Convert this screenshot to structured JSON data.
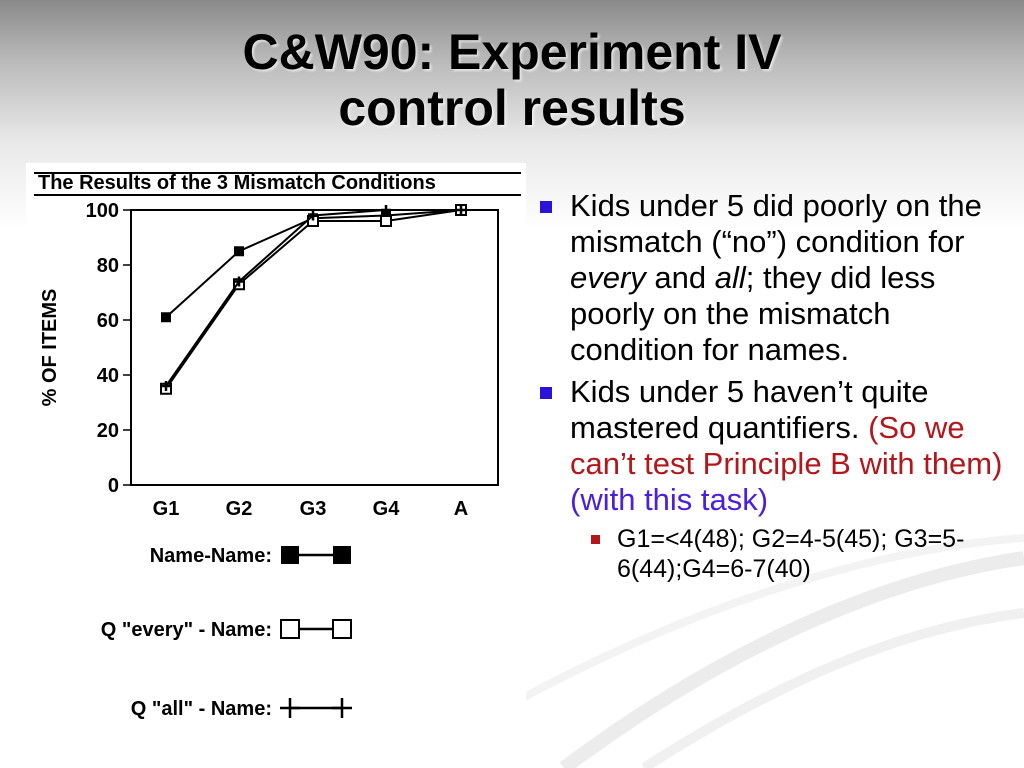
{
  "slide": {
    "title_line1": "C&W90: Experiment IV",
    "title_line2": "control results",
    "bullets": [
      {
        "part1": "Kids under 5 did poorly on the mismatch (“no”) condition for ",
        "em1": "every",
        "part2": " and ",
        "em2": "all",
        "part3": "; they did less poorly on the mismatch condition for names."
      },
      {
        "part1": "Kids under 5 haven’t quite mastered quantifiers. ",
        "red": "(So we can’t test Principle B with them)",
        "space": " ",
        "blue": "(with this task)"
      }
    ],
    "sub_bullet": "G1=<4(48); G2=4-5(45); G3=5-6(44);G4=6-7(40)",
    "colors": {
      "bullet": "#2a12d9",
      "red_text": "#b3161b",
      "blue_text": "#4b1ee0"
    }
  },
  "chart_data": {
    "type": "line",
    "title": "The Results of the 3 Mismatch Conditions",
    "ylabel": "% OF ITEMS",
    "xlabel": "",
    "categories": [
      "G1",
      "G2",
      "G3",
      "G4",
      "A"
    ],
    "ylim": [
      0,
      100
    ],
    "yticks": [
      0,
      20,
      40,
      60,
      80,
      100
    ],
    "series": [
      {
        "name": "Name-Name:",
        "marker": "filled-square",
        "values": [
          61,
          85,
          97,
          98,
          100
        ]
      },
      {
        "name": "Q \"every\" - Name:",
        "marker": "open-square",
        "values": [
          35,
          73,
          96,
          96,
          100
        ]
      },
      {
        "name": "Q \"all\" - Name:",
        "marker": "plus",
        "values": [
          36,
          74,
          98,
          100,
          100
        ]
      }
    ],
    "grid": false,
    "legend": "bottom"
  }
}
